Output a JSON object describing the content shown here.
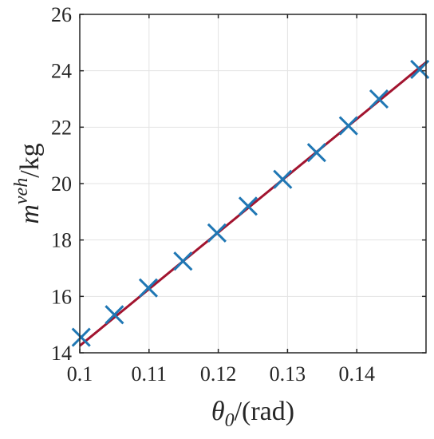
{
  "chart_data": {
    "type": "scatter",
    "title": "",
    "xlabel": {
      "symbol": "θ",
      "subscript": "0",
      "unit": "/(rad)"
    },
    "ylabel": {
      "symbol": "m",
      "superscript": "veh",
      "unit": "/kg"
    },
    "xlim": [
      0.1,
      0.15
    ],
    "ylim": [
      14,
      26
    ],
    "x_ticks": [
      0.1,
      0.11,
      0.12,
      0.13,
      0.14
    ],
    "x_tick_labels": [
      "0.1",
      "0.11",
      "0.12",
      "0.13",
      "0.14"
    ],
    "y_ticks": [
      14,
      16,
      18,
      20,
      22,
      24,
      26
    ],
    "y_tick_labels": [
      "14",
      "16",
      "18",
      "20",
      "22",
      "24",
      "26"
    ],
    "grid": true,
    "series": [
      {
        "kind": "markers",
        "marker": "x",
        "color": "#1f77b4",
        "x": [
          0.1002,
          0.105,
          0.1099,
          0.1149,
          0.1198,
          0.1243,
          0.1293,
          0.1342,
          0.1388,
          0.1432,
          0.1491
        ],
        "y": [
          14.55,
          15.35,
          16.3,
          17.25,
          18.25,
          19.2,
          20.15,
          21.1,
          22.05,
          23.0,
          24.05
        ]
      },
      {
        "kind": "fit-line",
        "color": "#a2142f",
        "x": [
          0.1,
          0.15
        ],
        "y": [
          14.25,
          24.3
        ]
      }
    ]
  }
}
